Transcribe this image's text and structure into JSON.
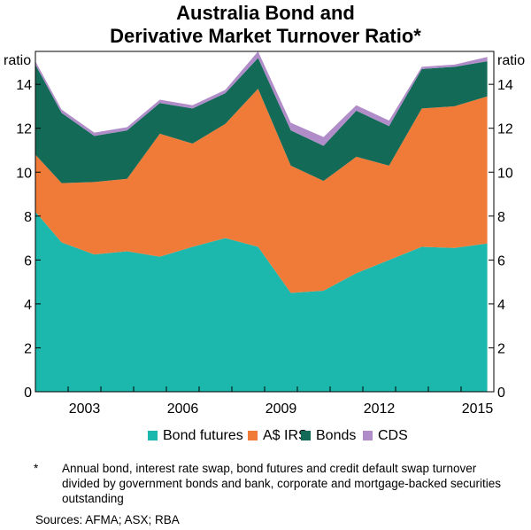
{
  "title_line1": "Australia Bond and",
  "title_line2": "Derivative Market Turnover Ratio*",
  "unit_left": "ratio",
  "unit_right": "ratio",
  "footnote_marker": "*",
  "footnote_text": "Annual bond, interest rate swap, bond futures and credit default swap turnover divided by government bonds and bank, corporate and mortgage-backed securities outstanding",
  "sources": "Sources:   AFMA; ASX; RBA",
  "colors": {
    "bond_futures": "#1cb8ad",
    "aud_irs": "#f07b38",
    "bonds": "#136b57",
    "cds": "#b08dc8"
  },
  "chart_data": {
    "type": "area",
    "stacked": true,
    "x_tick_labels": [
      "2003",
      "2006",
      "2009",
      "2012",
      "2015"
    ],
    "y_tick_labels": [
      "0",
      "2",
      "4",
      "6",
      "8",
      "10",
      "12",
      "14"
    ],
    "ylim": [
      0,
      15.5
    ],
    "grid": true,
    "legend_position": "bottom",
    "x": [
      2001.0,
      2001.8,
      2002.8,
      2003.8,
      2004.8,
      2005.8,
      2006.8,
      2007.8,
      2008.8,
      2009.8,
      2010.8,
      2011.8,
      2012.8,
      2013.8,
      2014.8
    ],
    "series": [
      {
        "name": "Bond futures",
        "color_key": "bond_futures",
        "values": [
          8.2,
          6.8,
          6.25,
          6.4,
          6.15,
          6.6,
          7.0,
          6.6,
          4.5,
          4.6,
          5.4,
          6.0,
          6.6,
          6.55,
          6.75
        ]
      },
      {
        "name": "A$ IRS",
        "color_key": "aud_irs",
        "values": [
          2.6,
          2.7,
          3.3,
          3.3,
          5.6,
          4.7,
          5.2,
          7.2,
          5.8,
          5.0,
          5.3,
          4.3,
          6.3,
          6.45,
          6.7
        ]
      },
      {
        "name": "Bonds",
        "color_key": "bonds",
        "values": [
          4.1,
          3.2,
          2.1,
          2.2,
          1.4,
          1.6,
          1.4,
          1.4,
          1.6,
          1.6,
          2.1,
          1.8,
          1.8,
          1.8,
          1.6
        ]
      },
      {
        "name": "CDS",
        "color_key": "cds",
        "values": [
          0.15,
          0.15,
          0.15,
          0.15,
          0.15,
          0.15,
          0.15,
          0.3,
          0.35,
          0.4,
          0.25,
          0.25,
          0.1,
          0.1,
          0.2
        ]
      }
    ]
  }
}
